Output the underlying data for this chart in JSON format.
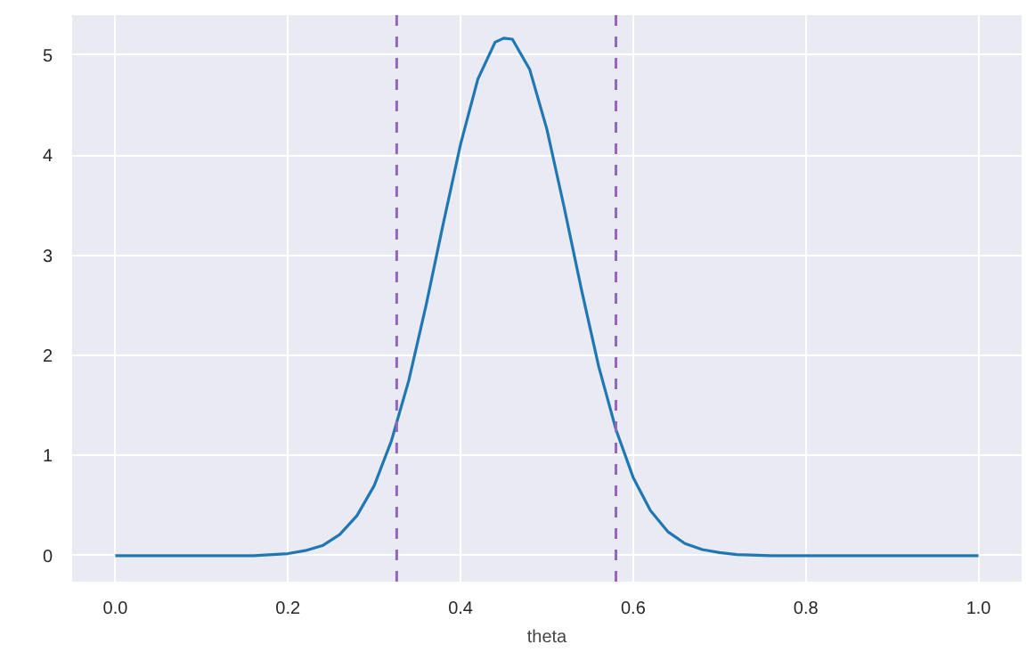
{
  "chart_data": {
    "type": "line",
    "xlabel": "theta",
    "x": [
      0,
      0.1,
      0.16,
      0.2,
      0.22,
      0.24,
      0.26,
      0.28,
      0.3,
      0.32,
      0.34,
      0.36,
      0.38,
      0.4,
      0.42,
      0.44,
      0.45,
      0.46,
      0.48,
      0.5,
      0.52,
      0.54,
      0.56,
      0.58,
      0.6,
      0.62,
      0.64,
      0.66,
      0.68,
      0.7,
      0.72,
      0.76,
      0.8,
      0.9,
      1.0
    ],
    "series": [
      {
        "color": "#1f77b4",
        "values": [
          0,
          0,
          0,
          0.02,
          0.05,
          0.1,
          0.21,
          0.4,
          0.7,
          1.15,
          1.75,
          2.5,
          3.32,
          4.11,
          4.76,
          5.13,
          5.17,
          5.16,
          4.86,
          4.26,
          3.48,
          2.66,
          1.89,
          1.26,
          0.78,
          0.45,
          0.24,
          0.12,
          0.06,
          0.03,
          0.01,
          0,
          0,
          0,
          0
        ]
      }
    ],
    "xlim": [
      -0.05,
      1.05
    ],
    "ylim": [
      -0.26,
      5.4
    ],
    "xticks": [
      {
        "value": 0,
        "label": "0.0"
      },
      0.2,
      0.4,
      0.6,
      0.8,
      {
        "value": 1,
        "label": "1.0"
      }
    ],
    "yticks": [
      0,
      1,
      2,
      3,
      4,
      5
    ],
    "ref_lines": [
      {
        "axis": "x",
        "value": 0.326,
        "color": "#9467bd",
        "line_style": "dashed"
      },
      {
        "axis": "x",
        "value": 0.58,
        "color": "#9467bd",
        "line_style": "dashed"
      }
    ],
    "grid": true,
    "line_style": "solid"
  }
}
